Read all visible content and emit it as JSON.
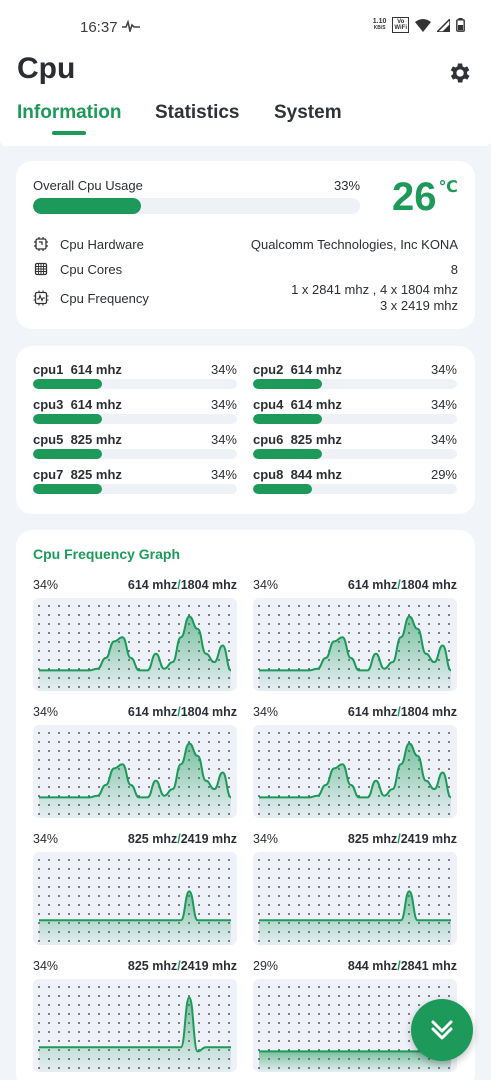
{
  "status_bar": {
    "time": "16:37",
    "net_speed_value": "1.10",
    "net_speed_unit": "KB/S",
    "wifi_tag_top": "Vo",
    "wifi_tag_bottom": "WiFi"
  },
  "header": {
    "title": "Cpu",
    "tabs": [
      "Information",
      "Statistics",
      "System"
    ],
    "active_tab": 0
  },
  "overview": {
    "usage_label": "Overall Cpu Usage",
    "usage_pct_text": "33%",
    "usage_fraction": 0.33,
    "temperature_value": "26",
    "temperature_unit": "℃",
    "info": [
      {
        "icon": "chip-icon",
        "label": "Cpu Hardware",
        "value_lines": [
          "Qualcomm Technologies, Inc KONA"
        ]
      },
      {
        "icon": "cores-icon",
        "label": "Cpu Cores",
        "value_lines": [
          "8"
        ]
      },
      {
        "icon": "frequency-icon",
        "label": "Cpu Frequency",
        "value_lines": [
          "1 x 2841 mhz , 4 x 1804 mhz",
          "3 x 2419 mhz"
        ]
      }
    ]
  },
  "cores": [
    {
      "name": "cpu1",
      "freq": "614 mhz",
      "pct_text": "34%",
      "fraction": 0.34
    },
    {
      "name": "cpu2",
      "freq": "614 mhz",
      "pct_text": "34%",
      "fraction": 0.34
    },
    {
      "name": "cpu3",
      "freq": "614 mhz",
      "pct_text": "34%",
      "fraction": 0.34
    },
    {
      "name": "cpu4",
      "freq": "614 mhz",
      "pct_text": "34%",
      "fraction": 0.34
    },
    {
      "name": "cpu5",
      "freq": "825 mhz",
      "pct_text": "34%",
      "fraction": 0.34
    },
    {
      "name": "cpu6",
      "freq": "825 mhz",
      "pct_text": "34%",
      "fraction": 0.34
    },
    {
      "name": "cpu7",
      "freq": "825 mhz",
      "pct_text": "34%",
      "fraction": 0.34
    },
    {
      "name": "cpu8",
      "freq": "844 mhz",
      "pct_text": "29%",
      "fraction": 0.29
    }
  ],
  "graph_section": {
    "title": "Cpu Frequency Graph",
    "graphs": [
      {
        "pct_text": "34%",
        "current": "614 mhz",
        "max": "1804 mhz",
        "series": [
          0.2,
          0.2,
          0.2,
          0.2,
          0.2,
          0.2,
          0.2,
          0.22,
          0.35,
          0.55,
          0.6,
          0.35,
          0.2,
          0.2,
          0.4,
          0.22,
          0.3,
          0.6,
          0.85,
          0.7,
          0.4,
          0.3,
          0.5,
          0.2
        ]
      },
      {
        "pct_text": "34%",
        "current": "614 mhz",
        "max": "1804 mhz",
        "series": [
          0.2,
          0.2,
          0.2,
          0.2,
          0.2,
          0.2,
          0.2,
          0.22,
          0.35,
          0.55,
          0.6,
          0.35,
          0.2,
          0.2,
          0.4,
          0.22,
          0.3,
          0.6,
          0.85,
          0.7,
          0.4,
          0.3,
          0.5,
          0.2
        ]
      },
      {
        "pct_text": "34%",
        "current": "614 mhz",
        "max": "1804 mhz",
        "series": [
          0.2,
          0.2,
          0.2,
          0.2,
          0.2,
          0.2,
          0.2,
          0.22,
          0.35,
          0.55,
          0.6,
          0.35,
          0.2,
          0.2,
          0.4,
          0.22,
          0.3,
          0.6,
          0.85,
          0.7,
          0.4,
          0.3,
          0.5,
          0.2
        ]
      },
      {
        "pct_text": "34%",
        "current": "614 mhz",
        "max": "1804 mhz",
        "series": [
          0.2,
          0.2,
          0.2,
          0.2,
          0.2,
          0.2,
          0.2,
          0.22,
          0.35,
          0.55,
          0.6,
          0.35,
          0.2,
          0.2,
          0.4,
          0.22,
          0.3,
          0.6,
          0.85,
          0.7,
          0.4,
          0.3,
          0.5,
          0.2
        ]
      },
      {
        "pct_text": "34%",
        "current": "825 mhz",
        "max": "2419 mhz",
        "series": [
          0.25,
          0.25,
          0.25,
          0.25,
          0.25,
          0.25,
          0.25,
          0.25,
          0.25,
          0.25,
          0.25,
          0.25,
          0.25,
          0.25,
          0.25,
          0.25,
          0.25,
          0.25,
          0.6,
          0.25,
          0.25,
          0.25,
          0.25,
          0.25
        ]
      },
      {
        "pct_text": "34%",
        "current": "825 mhz",
        "max": "2419 mhz",
        "series": [
          0.25,
          0.25,
          0.25,
          0.25,
          0.25,
          0.25,
          0.25,
          0.25,
          0.25,
          0.25,
          0.25,
          0.25,
          0.25,
          0.25,
          0.25,
          0.25,
          0.25,
          0.25,
          0.6,
          0.25,
          0.25,
          0.25,
          0.25,
          0.25
        ]
      },
      {
        "pct_text": "34%",
        "current": "825 mhz",
        "max": "2419 mhz",
        "series": [
          0.25,
          0.25,
          0.25,
          0.25,
          0.25,
          0.25,
          0.25,
          0.25,
          0.25,
          0.25,
          0.25,
          0.25,
          0.25,
          0.25,
          0.25,
          0.25,
          0.25,
          0.25,
          0.85,
          0.2,
          0.25,
          0.25,
          0.25,
          0.25
        ]
      },
      {
        "pct_text": "29%",
        "current": "844 mhz",
        "max": "2841 mhz",
        "series": [
          0.2,
          0.2,
          0.2,
          0.2,
          0.2,
          0.2,
          0.2,
          0.2,
          0.2,
          0.2,
          0.2,
          0.2,
          0.2,
          0.2,
          0.2,
          0.2,
          0.2,
          0.2,
          0.2,
          0.2,
          0.2,
          0.2,
          0.2,
          0.2
        ]
      }
    ]
  },
  "colors": {
    "accent": "#1d9a5a",
    "bar_track": "#eef2f7",
    "graph_bg": "#eef1f8",
    "dots": "#2b2e33"
  },
  "fab": {
    "icon": "double-chevron-down-icon"
  }
}
